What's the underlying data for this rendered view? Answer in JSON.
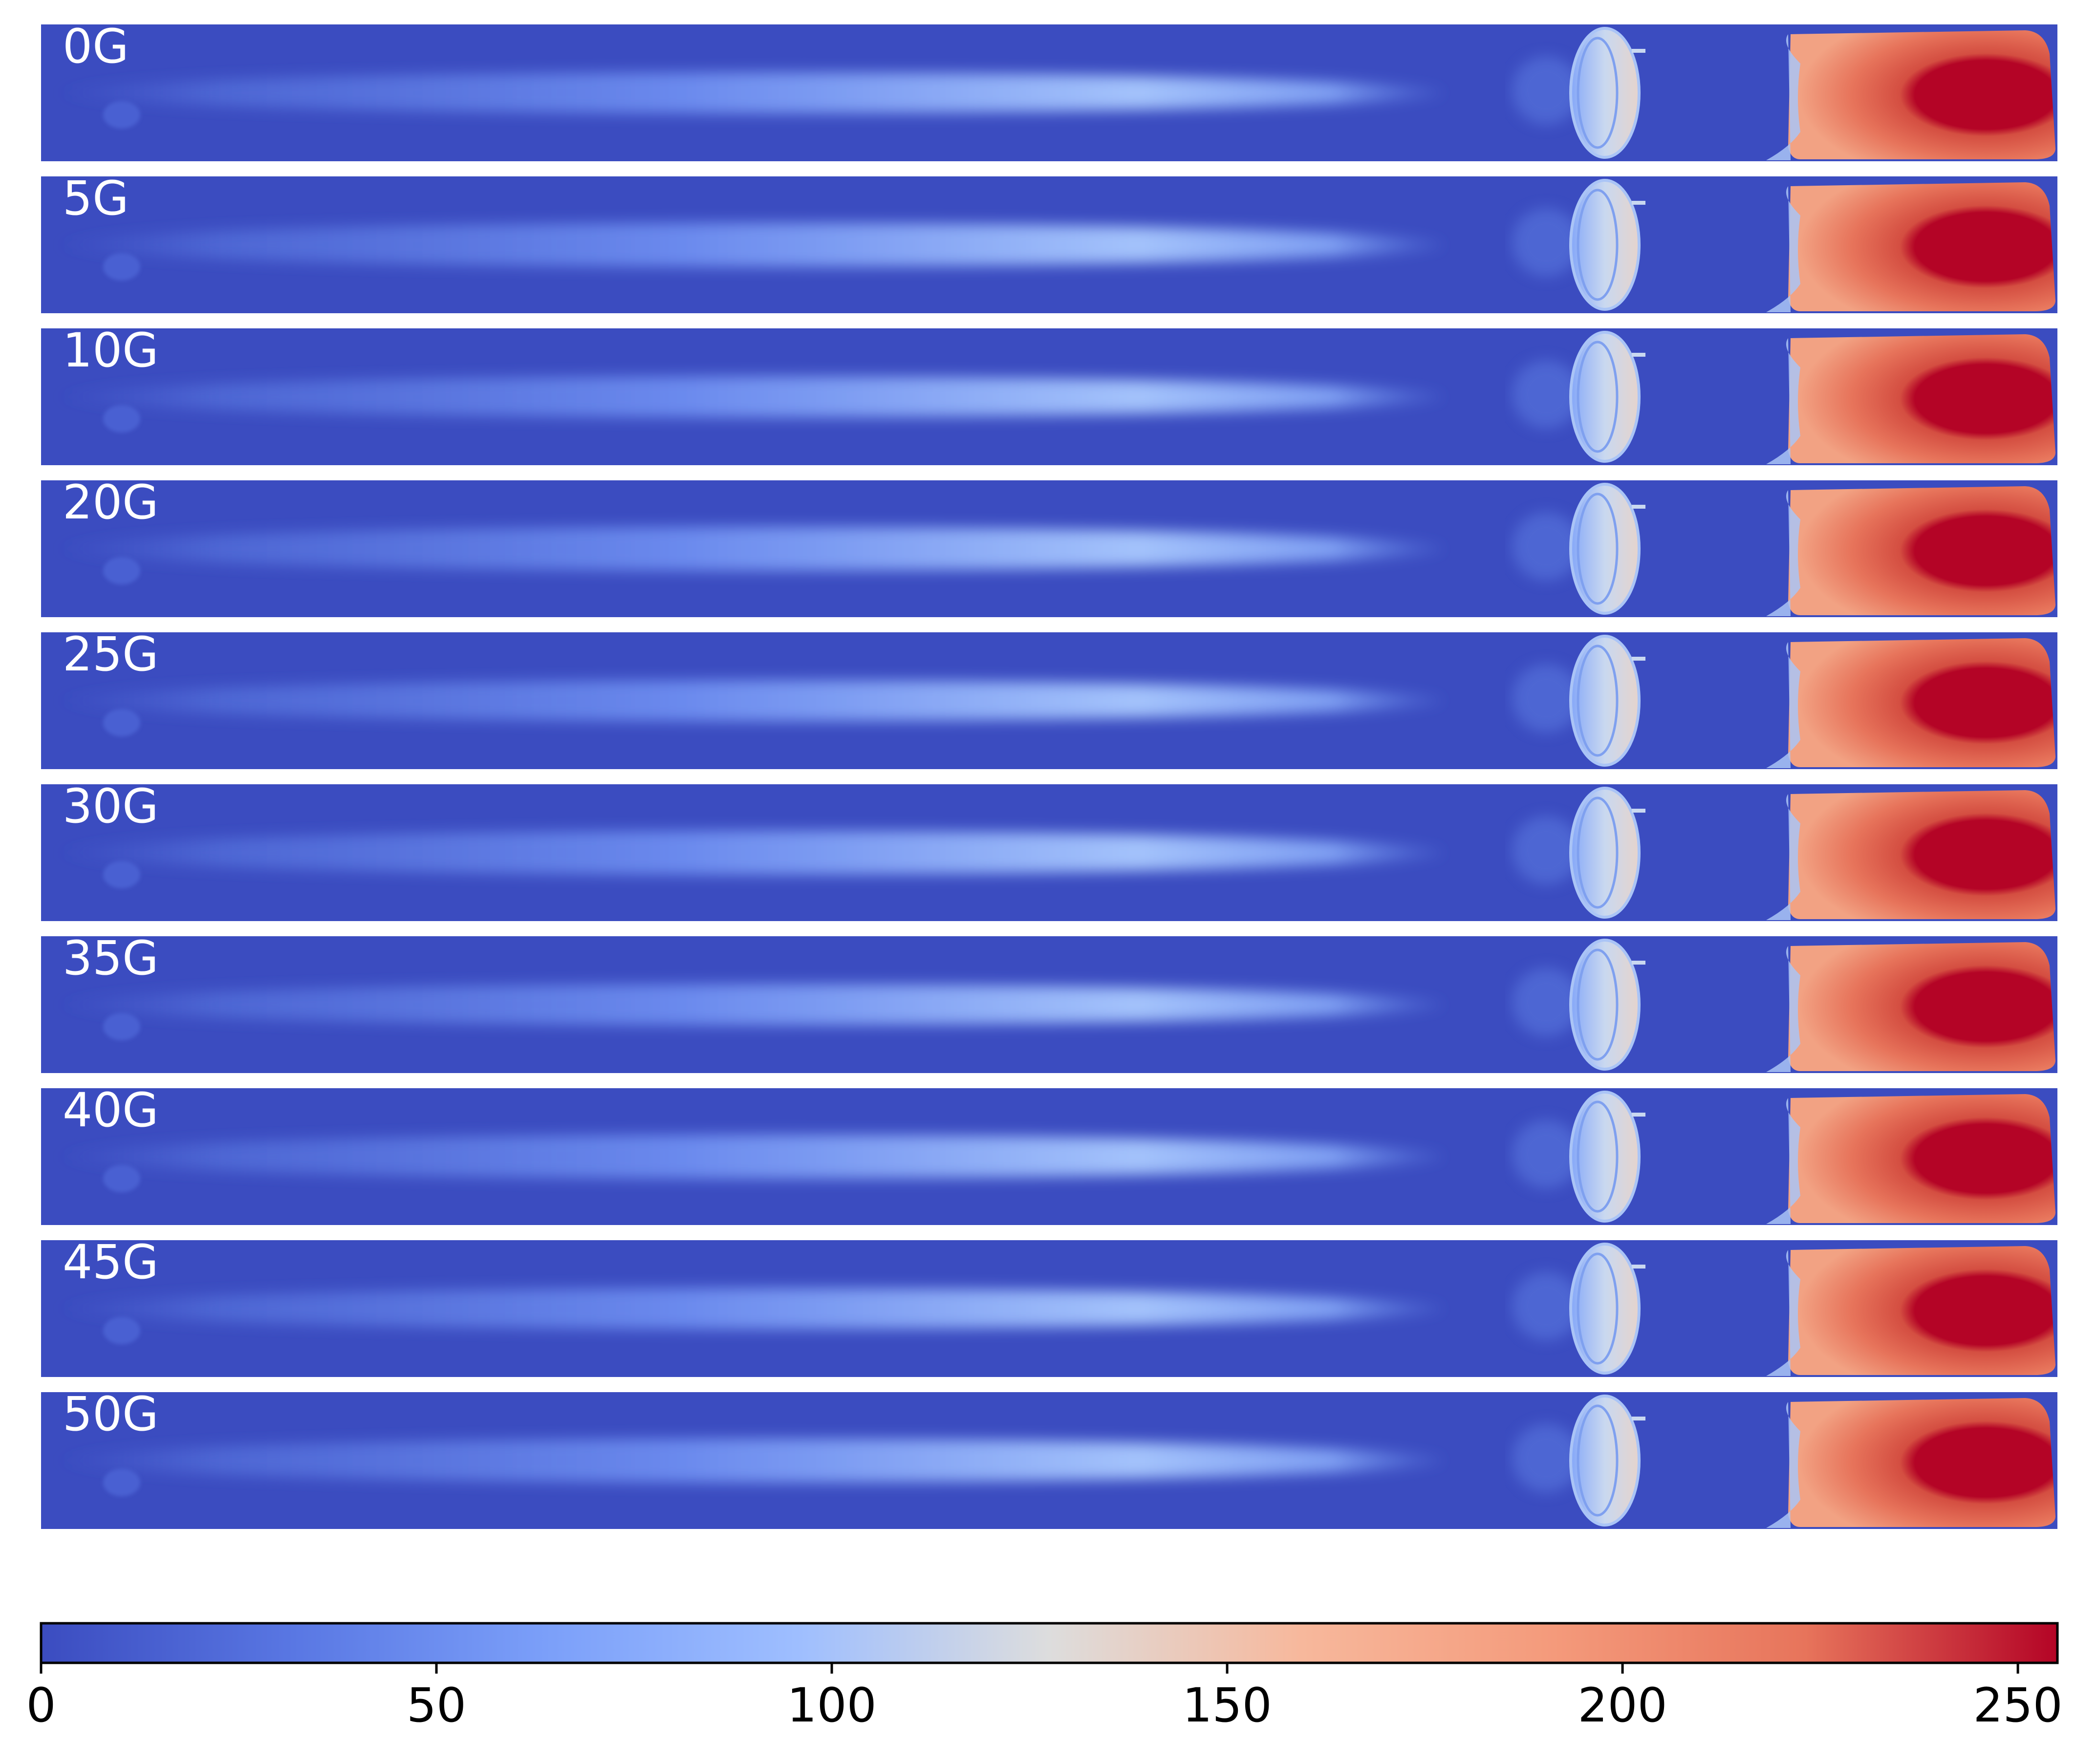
{
  "chart_data": {
    "type": "heatmap",
    "colormap": "coolwarm",
    "panels": [
      "0G",
      "5G",
      "10G",
      "20G",
      "25G",
      "30G",
      "35G",
      "40G",
      "45G",
      "50G"
    ],
    "colorbar": {
      "min": 0,
      "max": 255,
      "ticks": [
        0,
        50,
        100,
        150,
        200,
        250
      ],
      "orientation": "horizontal"
    },
    "colors": {
      "background_min": "#3b4cc0",
      "mid": "#dddddd",
      "max": "#b40426",
      "label_text": "#ffffff"
    }
  }
}
